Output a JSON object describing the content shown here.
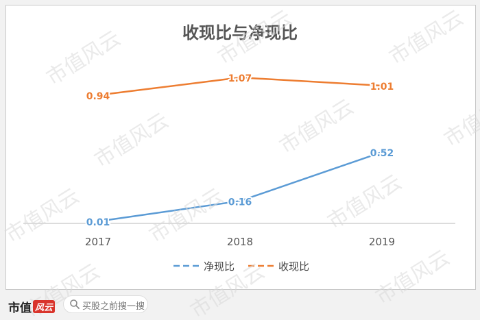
{
  "chart_data": {
    "type": "line",
    "title": "收现比与净现比",
    "categories": [
      "2017",
      "2018",
      "2019"
    ],
    "series": [
      {
        "name": "净现比",
        "values": [
          0.01,
          0.16,
          0.52
        ],
        "labels": [
          "0.01",
          "0.16",
          "0.52"
        ],
        "color": "#5b9bd5"
      },
      {
        "name": "收现比",
        "values": [
          0.94,
          1.07,
          1.01
        ],
        "labels": [
          "0.94",
          "1.07",
          "1.01"
        ],
        "color": "#ed7d31"
      }
    ],
    "ylim": [
      0,
      1.2
    ],
    "grid": false,
    "legend_position": "bottom"
  },
  "watermark": "市值风云",
  "footer": {
    "brand": "市值",
    "brand_mark": "风云",
    "search_placeholder": "买股之前搜一搜",
    "search_icon": "search-icon"
  }
}
